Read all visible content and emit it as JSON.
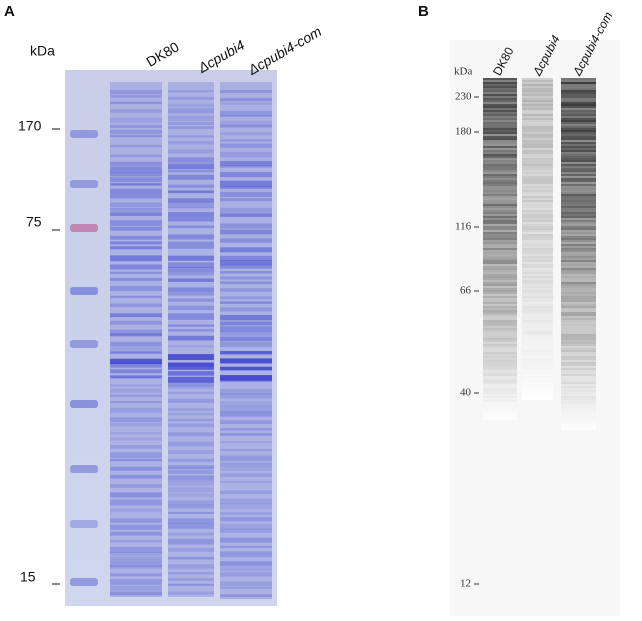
{
  "panels": [
    {
      "label": "A",
      "unit": "kDa",
      "lanes": [
        "DK80",
        "Δcpubi4",
        "Δcpubi4-com"
      ],
      "markers": [
        "170",
        "75",
        "15"
      ]
    },
    {
      "label": "B",
      "unit": "kDa",
      "lanes": [
        "DK80",
        "Δcpubi4",
        "Δcpubi4-com"
      ],
      "markers": [
        "230",
        "180",
        "116",
        "66",
        "40",
        "12"
      ]
    }
  ]
}
